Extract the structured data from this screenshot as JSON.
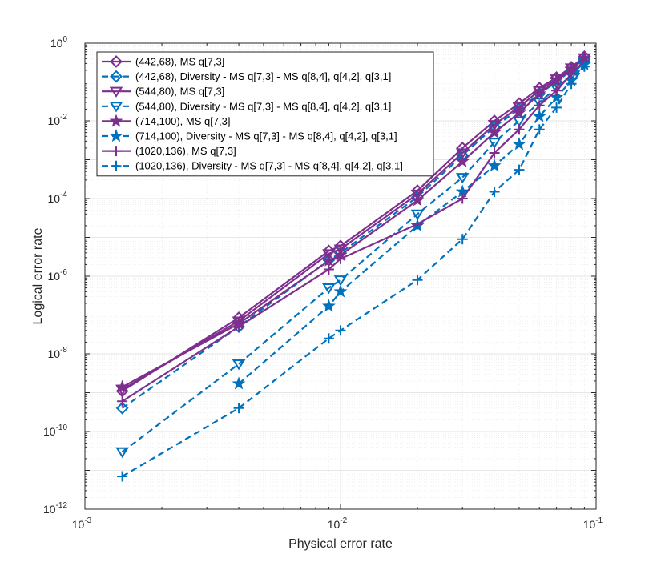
{
  "chart_data": {
    "type": "line",
    "xscale": "log",
    "yscale": "log",
    "xlabel": "Physical error rate",
    "ylabel": "Logical error rate",
    "xlim": [
      0.001,
      0.1
    ],
    "ylim": [
      1e-12,
      1
    ],
    "x_ticks": [
      {
        "value": 0.001,
        "base": "10",
        "exp": "-3"
      },
      {
        "value": 0.01,
        "base": "10",
        "exp": "-2"
      },
      {
        "value": 0.1,
        "base": "10",
        "exp": "-1"
      }
    ],
    "y_ticks": [
      {
        "value": 1e-12,
        "base": "10",
        "exp": "-12"
      },
      {
        "value": 1e-10,
        "base": "10",
        "exp": "-10"
      },
      {
        "value": 1e-08,
        "base": "10",
        "exp": "-8"
      },
      {
        "value": 1e-06,
        "base": "10",
        "exp": "-6"
      },
      {
        "value": 0.0001,
        "base": "10",
        "exp": "-4"
      },
      {
        "value": 0.01,
        "base": "10",
        "exp": "-2"
      },
      {
        "value": 1,
        "base": "10",
        "exp": "0"
      }
    ],
    "grid": true,
    "legend_position": "top-left",
    "colors": {
      "purple": "#7E2F8E",
      "blue": "#0072BD",
      "grid": "#e6e6e6",
      "axis": "#262626"
    },
    "x": [
      0.0014,
      0.004,
      0.009,
      0.01,
      0.02,
      0.03,
      0.04,
      0.05,
      0.06,
      0.07,
      0.08,
      0.09
    ],
    "series": [
      {
        "name": "(442,68), MS q[7,3]",
        "color": "#7E2F8E",
        "dash": "solid",
        "marker": "diamond",
        "values": [
          1.1e-09,
          8.5e-08,
          4.5e-06,
          6e-06,
          0.00016,
          0.002,
          0.01,
          0.028,
          0.07,
          0.13,
          0.24,
          0.45
        ]
      },
      {
        "name": "(442,68), Diversity - MS q[7,3] - MS q[8,4], q[4,2], q[3,1]",
        "color": "#0072BD",
        "dash": "dashed",
        "marker": "diamond",
        "values": [
          4e-10,
          5e-08,
          2.6e-06,
          4e-06,
          0.00011,
          0.0013,
          0.007,
          0.02,
          0.05,
          0.1,
          0.2,
          0.38
        ]
      },
      {
        "name": "(544,80), MS q[7,3]",
        "color": "#7E2F8E",
        "dash": "solid",
        "marker": "triangle-down",
        "values": [
          1.2e-09,
          7e-08,
          3.8e-06,
          5e-06,
          0.00013,
          0.0015,
          0.008,
          0.023,
          0.06,
          0.12,
          0.23,
          0.42
        ]
      },
      {
        "name": "(544,80), Diversity - MS q[7,3] - MS q[8,4], q[4,2], q[3,1]",
        "color": "#0072BD",
        "dash": "dashed",
        "marker": "triangle-down",
        "values": [
          3e-11,
          5.5e-09,
          5e-07,
          8e-07,
          4e-05,
          0.00035,
          0.0028,
          0.01,
          0.03,
          0.07,
          0.15,
          0.32
        ]
      },
      {
        "name": "(714,100), MS q[7,3]",
        "color": "#7E2F8E",
        "dash": "solid",
        "marker": "star",
        "values": [
          1.4e-09,
          6e-08,
          2.5e-06,
          3.5e-06,
          9e-05,
          0.0009,
          0.005,
          0.016,
          0.05,
          0.11,
          0.21,
          0.4
        ]
      },
      {
        "name": "(714,100), Diversity - MS q[7,3] - MS q[8,4], q[4,2], q[3,1]",
        "color": "#0072BD",
        "dash": "dashed",
        "marker": "star",
        "values": [
          null,
          1.7e-09,
          1.7e-07,
          4e-07,
          2e-05,
          0.00015,
          0.0007,
          0.0025,
          0.013,
          0.04,
          0.11,
          0.28
        ]
      },
      {
        "name": "(1020,136), MS q[7,3]",
        "color": "#7E2F8E",
        "dash": "solid",
        "marker": "plus",
        "values": [
          6e-10,
          5e-08,
          1.5e-06,
          2.8e-06,
          2.2e-05,
          0.0001,
          0.0015,
          0.006,
          0.025,
          0.06,
          0.16,
          0.35
        ]
      },
      {
        "name": "(1020,136), Diversity - MS q[7,3] - MS q[8,4], q[4,2], q[3,1]",
        "color": "#0072BD",
        "dash": "dashed",
        "marker": "plus",
        "values": [
          7e-12,
          4e-10,
          2.5e-08,
          4e-08,
          8e-07,
          9e-06,
          0.00015,
          0.00055,
          0.006,
          0.022,
          0.09,
          0.25
        ]
      }
    ]
  }
}
